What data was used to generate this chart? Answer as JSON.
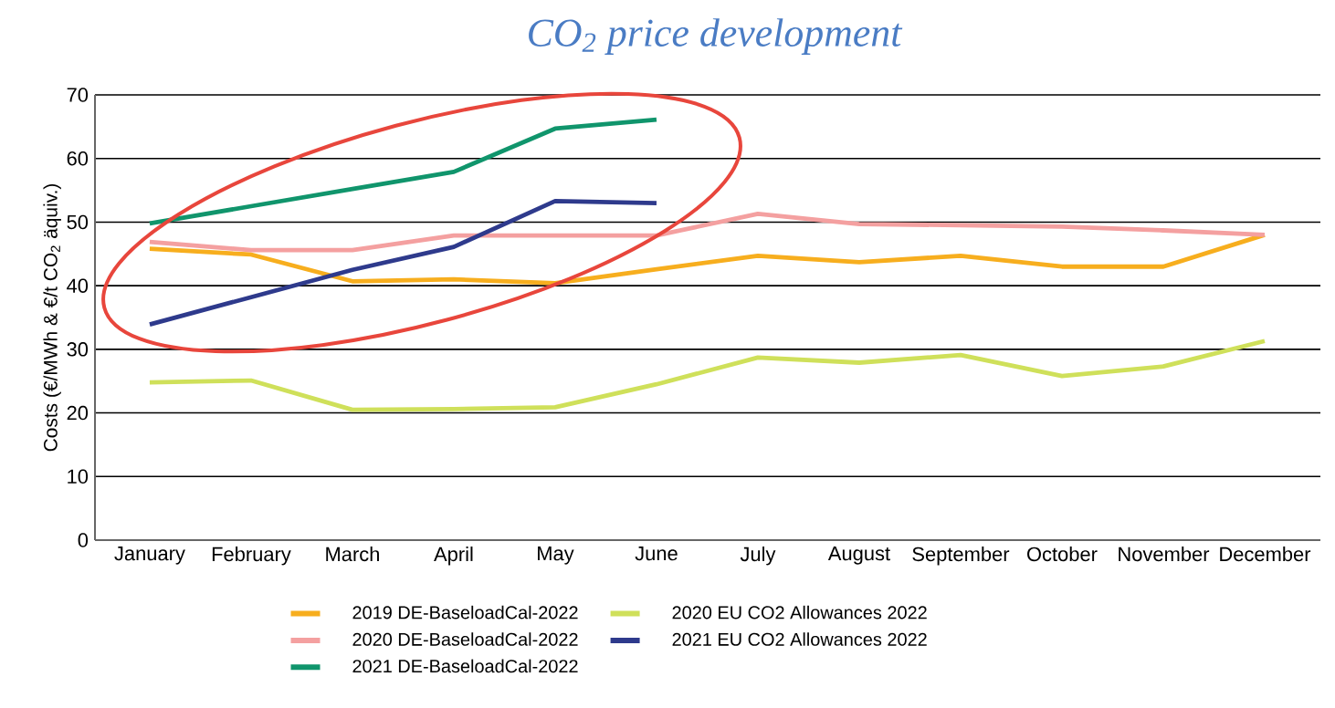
{
  "chart_data": {
    "type": "line",
    "title": "CO$_{2}$ price development",
    "ylabel": "Costs (€/MWh & €/t CO$_{2}$ äquiv.)",
    "categories": [
      "January",
      "February",
      "March",
      "April",
      "May",
      "June",
      "July",
      "August",
      "September",
      "October",
      "November",
      "December"
    ],
    "ylim": [
      0,
      70
    ],
    "yticks": [
      0,
      10,
      20,
      30,
      40,
      50,
      60,
      70
    ],
    "grid": "y",
    "legend": "bottom",
    "series": [
      {
        "name": "2019 DE-BaseloadCal-2022",
        "color": "#f7ae1e",
        "values": [
          45.8,
          44.9,
          40.7,
          41.0,
          40.4,
          42.6,
          44.7,
          43.7,
          44.7,
          43.0,
          43.0,
          48.0
        ]
      },
      {
        "name": "2020 EU CO2 Allowances 2022",
        "color": "#cfe05a",
        "values": [
          24.8,
          25.1,
          20.5,
          20.6,
          20.9,
          24.5,
          28.7,
          27.9,
          29.1,
          25.8,
          27.3,
          31.3
        ]
      },
      {
        "name": "2020 DE-BaseloadCal-2022",
        "color": "#f4a0a0",
        "values": [
          46.9,
          45.6,
          45.6,
          47.9,
          47.9,
          47.9,
          51.3,
          49.7,
          49.5,
          49.3,
          48.7,
          48.0
        ]
      },
      {
        "name": "2021 EU CO2 Allowances 2022",
        "color": "#2e3a8c",
        "values": [
          33.9,
          38.2,
          42.5,
          46.1,
          53.3,
          53.0,
          null,
          null,
          null,
          null,
          null,
          null
        ]
      },
      {
        "name": "2021 DE-BaseloadCal-2022",
        "color": "#10956c",
        "values": [
          49.8,
          52.5,
          55.2,
          57.9,
          64.7,
          66.1,
          null,
          null,
          null,
          null,
          null,
          null
        ]
      }
    ]
  }
}
